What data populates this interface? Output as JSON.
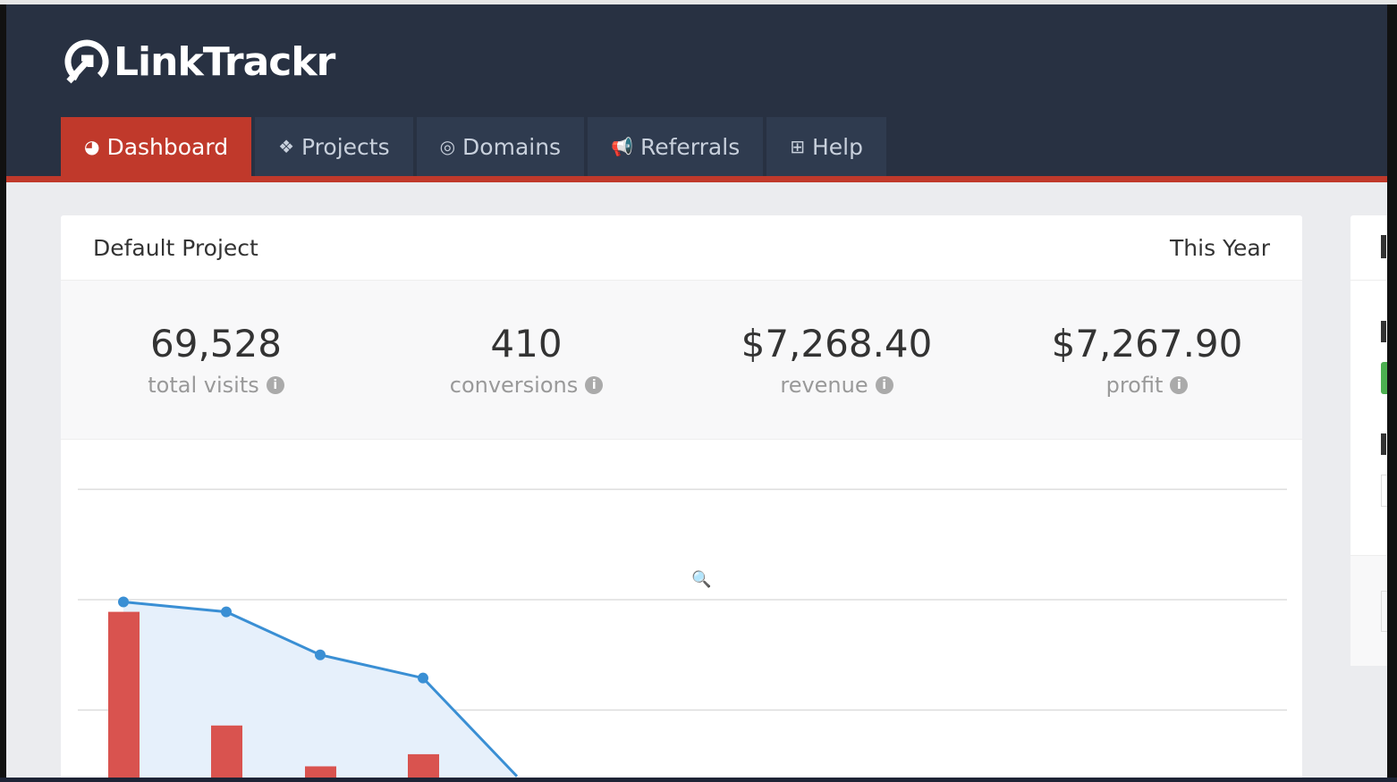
{
  "app": {
    "logo": "LinkTrackr"
  },
  "nav": {
    "tabs": [
      {
        "label": "Dashboard",
        "icon": "dashboard-icon",
        "active": true
      },
      {
        "label": "Projects",
        "icon": "cubes-icon"
      },
      {
        "label": "Domains",
        "icon": "compass-icon"
      },
      {
        "label": "Referrals",
        "icon": "bullhorn-icon"
      },
      {
        "label": "Help",
        "icon": "medkit-icon"
      }
    ]
  },
  "card": {
    "project": "Default Project",
    "period": "This Year",
    "stats": [
      {
        "value": "69,528",
        "label": "total visits"
      },
      {
        "value": "410",
        "label": "conversions"
      },
      {
        "value": "$7,268.40",
        "label": "revenue"
      },
      {
        "value": "$7,267.90",
        "label": "profit"
      }
    ]
  },
  "colors": {
    "header": "#283142",
    "accent": "#c0392b",
    "line": "#3a8fd4",
    "bar": "#d9534f"
  },
  "chart_data": {
    "type": "bar+area",
    "grid": true,
    "ylim": [
      0,
      3
    ],
    "series": [
      {
        "type": "area",
        "values": [
          1.98,
          1.89,
          1.5,
          1.29,
          0.4
        ]
      },
      {
        "type": "bar",
        "values": [
          1.89,
          0.86,
          0.49,
          0.6
        ]
      }
    ]
  }
}
